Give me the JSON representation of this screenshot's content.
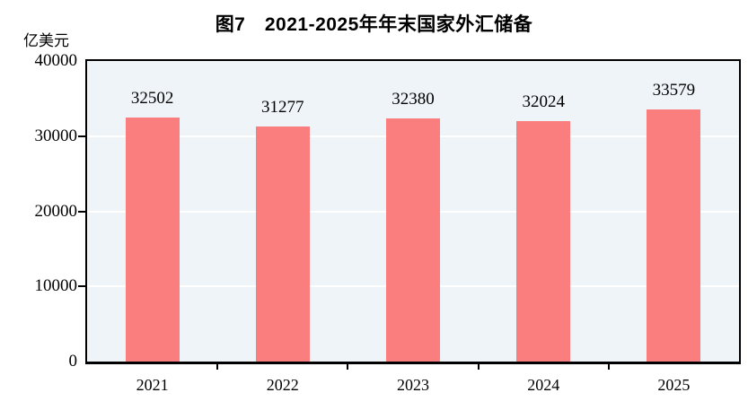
{
  "title": "图7　2021-2025年年末国家外汇储备",
  "y_axis_unit": "亿美元",
  "chart_data": {
    "type": "bar",
    "title": "图7 2021-2025年年末国家外汇储备",
    "categories": [
      "2021",
      "2022",
      "2023",
      "2024",
      "2025"
    ],
    "values": [
      32502,
      31277,
      32380,
      32024,
      33579
    ],
    "value_labels": [
      "32502",
      "31277",
      "32380",
      "32024",
      "33579"
    ],
    "xlabel": "",
    "ylabel": "亿美元",
    "ylim": [
      0,
      40000
    ],
    "yticks": [
      0,
      10000,
      20000,
      30000,
      40000
    ],
    "grid": true,
    "legend": "none",
    "colors": {
      "bar": "#FB7E7E",
      "plot_background": "#EEF4F8",
      "gridline": "#FFFFFF",
      "axis": "#000000",
      "text": "#000000"
    }
  }
}
